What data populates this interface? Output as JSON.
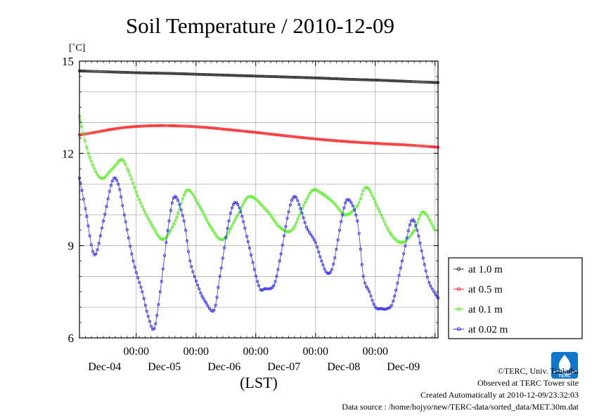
{
  "chart_data": {
    "type": "line",
    "title": "Soil Temperature / 2010-12-09",
    "ylabel": "[˚C]",
    "xlabel": "(LST)",
    "ylim": [
      6,
      15
    ],
    "yticks": [
      "15",
      "12",
      "9",
      "6"
    ],
    "yticks_values": [
      15,
      12,
      9,
      6
    ],
    "grid": true,
    "legend_position": "right",
    "x_hours_range": [
      -19,
      101
    ],
    "x_tick_time": "00:00",
    "x_days": [
      {
        "label": "Dec-04",
        "midnight_hour": 0
      },
      {
        "label": "Dec-05",
        "midnight_hour": 20
      },
      {
        "label": "Dec-06",
        "midnight_hour": 40
      },
      {
        "label": "Dec-07",
        "midnight_hour": 60
      },
      {
        "label": "Dec-08",
        "midnight_hour": 80
      },
      {
        "label": "Dec-09",
        "midnight_hour": 100
      }
    ],
    "series": [
      {
        "name": "at 1.0 m",
        "color": "#333333",
        "x": [
          -19,
          -9,
          1,
          11,
          21,
          31,
          41,
          51,
          61,
          71,
          81,
          91,
          101
        ],
        "y": [
          14.68,
          14.65,
          14.62,
          14.6,
          14.57,
          14.54,
          14.51,
          14.48,
          14.45,
          14.41,
          14.38,
          14.34,
          14.3
        ]
      },
      {
        "name": "at 0.5 m",
        "color": "#ff3333",
        "x": [
          -19,
          -14,
          -9,
          -4,
          1,
          6,
          11,
          21,
          31,
          41,
          51,
          61,
          71,
          81,
          91,
          101
        ],
        "y": [
          12.6,
          12.68,
          12.77,
          12.84,
          12.88,
          12.9,
          12.9,
          12.86,
          12.77,
          12.67,
          12.56,
          12.46,
          12.38,
          12.32,
          12.27,
          12.2
        ]
      },
      {
        "name": "at 0.1 m",
        "color": "#55ee22",
        "x": [
          -19,
          -16,
          -12,
          -8,
          -5,
          -3,
          1,
          5,
          9,
          13,
          17,
          21,
          25,
          29,
          34,
          38,
          44,
          48,
          52,
          56,
          59,
          62,
          66,
          70,
          74,
          77,
          81,
          85,
          89,
          93,
          96,
          100
        ],
        "y": [
          13.2,
          12.0,
          11.2,
          11.5,
          11.8,
          11.5,
          10.5,
          9.7,
          9.2,
          9.8,
          10.8,
          10.3,
          9.6,
          9.2,
          10.0,
          10.6,
          10.1,
          9.6,
          9.5,
          10.3,
          10.8,
          10.7,
          10.4,
          10.0,
          10.3,
          10.9,
          10.2,
          9.4,
          9.1,
          9.5,
          10.1,
          9.5
        ]
      },
      {
        "name": "at 0.02 m",
        "color": "#3333ee",
        "x": [
          -19,
          -17,
          -14,
          -11,
          -8,
          -6,
          -4,
          -1,
          2,
          4,
          6,
          8,
          11,
          13,
          16,
          18,
          21,
          23,
          26,
          28,
          31,
          33,
          35,
          37,
          41,
          43,
          46,
          48,
          51,
          53,
          55,
          57,
          60,
          62,
          64,
          66,
          69,
          71,
          74,
          76,
          78,
          80,
          82,
          84,
          86,
          89,
          92,
          94,
          96,
          98,
          101
        ],
        "y": [
          11.2,
          10.2,
          8.7,
          9.8,
          11.1,
          11.0,
          10.0,
          8.5,
          7.5,
          6.7,
          6.3,
          7.5,
          9.8,
          10.6,
          9.8,
          8.5,
          7.6,
          7.2,
          6.9,
          8.0,
          9.8,
          10.4,
          10.1,
          9.3,
          7.7,
          7.6,
          7.7,
          8.5,
          10.1,
          10.6,
          10.2,
          9.6,
          9.1,
          8.5,
          8.1,
          8.4,
          10.0,
          10.5,
          9.8,
          8.0,
          7.5,
          7.0,
          6.95,
          6.95,
          7.2,
          8.5,
          9.8,
          9.5,
          8.6,
          7.8,
          7.3
        ]
      }
    ]
  },
  "footer": {
    "credit": "©TERC, Univ. Tsukuba",
    "observed": "Observed at TERC Tower site",
    "created": "Created Automatically at 2010-12-09/23:32:03",
    "source": "Data source : /home/hojyo/new/TERC-data/sorted_data/MET.30m.dat"
  },
  "logo": {
    "text": "TERC",
    "color": "#1177cc"
  }
}
